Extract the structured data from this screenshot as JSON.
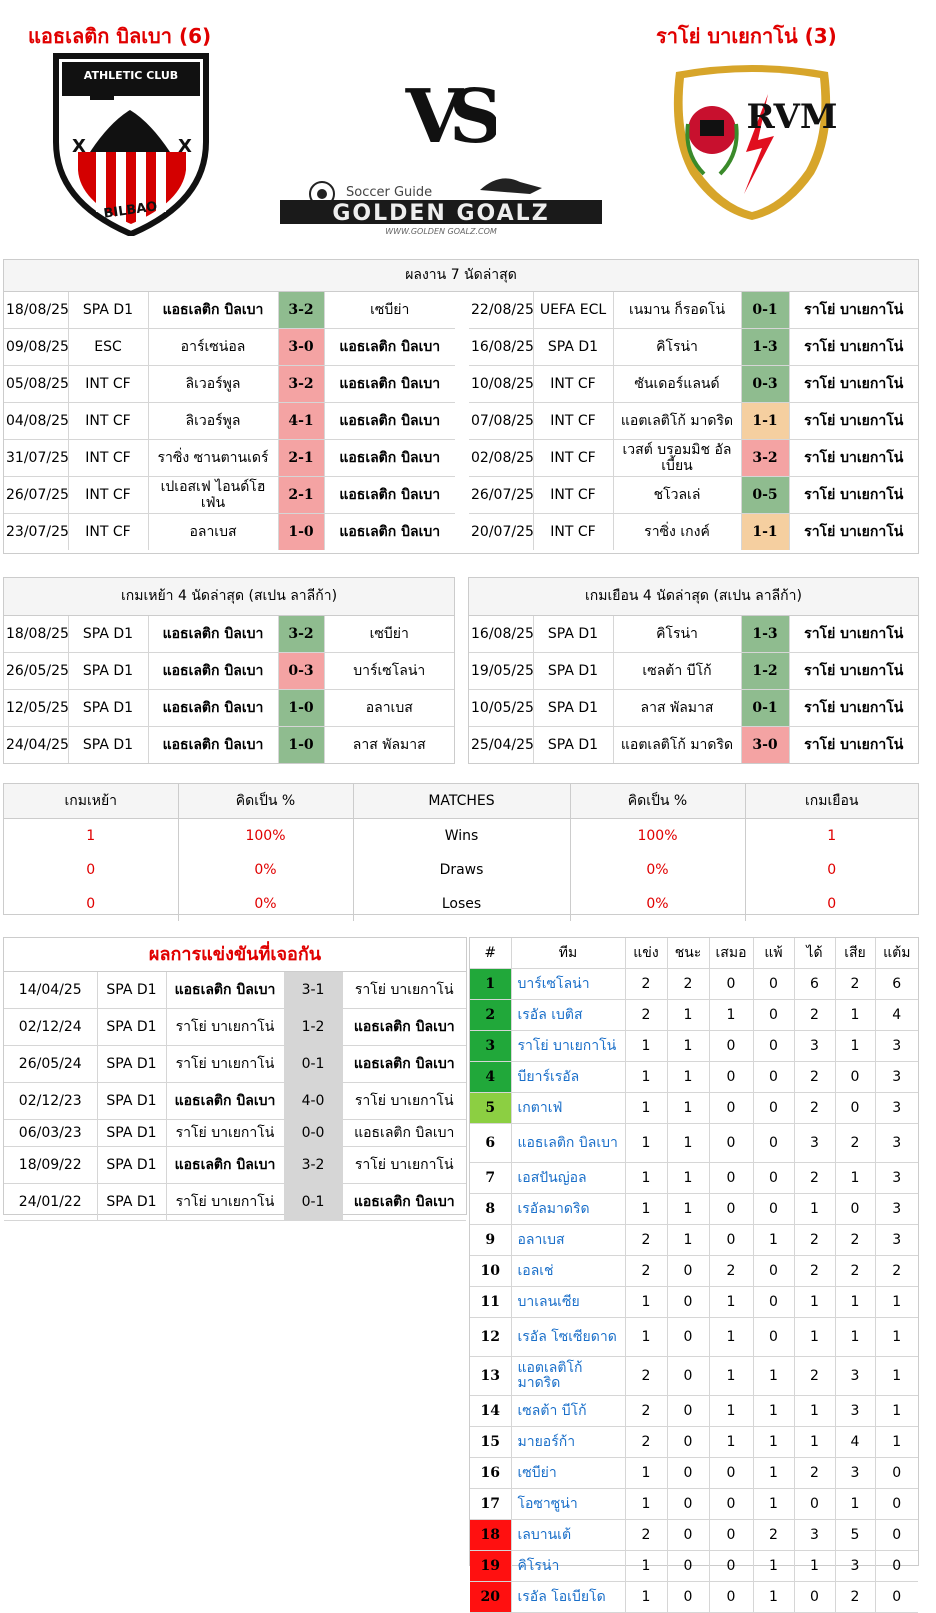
{
  "header": {
    "home_title": "แอธเลติก บิลเบา (6)",
    "away_title": "ราโย่ บาเยกาโน่ (3)",
    "vs": "VS",
    "home_crest_text": "ATHLETIC CLUB",
    "home_crest_bottom": "BILBAO",
    "away_crest_text": "RVM",
    "brand_top": "Soccer Guide",
    "brand_main": "GOLDEN GOALZ",
    "brand_url": "WWW.GOLDEN GOALZ.COM"
  },
  "last7": {
    "title": "ผลงาน 7 นัดล่าสุด",
    "home": [
      {
        "date": "18/08/25",
        "comp": "SPA D1",
        "home": "แอธเลติก บิลเบา",
        "score": "3-2",
        "away": "เซบีย่า",
        "res": "w",
        "bold": "home"
      },
      {
        "date": "09/08/25",
        "comp": "ESC",
        "home": "อาร์เซน่อล",
        "score": "3-0",
        "away": "แอธเลติก บิลเบา",
        "res": "l",
        "bold": "away"
      },
      {
        "date": "05/08/25",
        "comp": "INT CF",
        "home": "ลิเวอร์พูล",
        "score": "3-2",
        "away": "แอธเลติก บิลเบา",
        "res": "l",
        "bold": "away"
      },
      {
        "date": "04/08/25",
        "comp": "INT CF",
        "home": "ลิเวอร์พูล",
        "score": "4-1",
        "away": "แอธเลติก บิลเบา",
        "res": "l",
        "bold": "away"
      },
      {
        "date": "31/07/25",
        "comp": "INT CF",
        "home": "ราซิ่ง ซานตานเดร์",
        "score": "2-1",
        "away": "แอธเลติก บิลเบา",
        "res": "l",
        "bold": "away"
      },
      {
        "date": "26/07/25",
        "comp": "INT CF",
        "home": "เปเอสเฟ ไอนด์โฮเฟ่น",
        "score": "2-1",
        "away": "แอธเลติก บิลเบา",
        "res": "l",
        "bold": "away"
      },
      {
        "date": "23/07/25",
        "comp": "INT CF",
        "home": "อลาเบส",
        "score": "1-0",
        "away": "แอธเลติก บิลเบา",
        "res": "l",
        "bold": "away"
      }
    ],
    "away": [
      {
        "date": "22/08/25",
        "comp": "UEFA ECL",
        "home": "เนมาน ก็รอดโน่",
        "score": "0-1",
        "away": "ราโย่ บาเยกาโน่",
        "res": "w",
        "bold": "away"
      },
      {
        "date": "16/08/25",
        "comp": "SPA D1",
        "home": "คิโรน่า",
        "score": "1-3",
        "away": "ราโย่ บาเยกาโน่",
        "res": "w",
        "bold": "away"
      },
      {
        "date": "10/08/25",
        "comp": "INT CF",
        "home": "ซันเดอร์แลนด์",
        "score": "0-3",
        "away": "ราโย่ บาเยกาโน่",
        "res": "w",
        "bold": "away"
      },
      {
        "date": "07/08/25",
        "comp": "INT CF",
        "home": "แอตเลติโก้ มาดริด",
        "score": "1-1",
        "away": "ราโย่ บาเยกาโน่",
        "res": "d",
        "bold": "away"
      },
      {
        "date": "02/08/25",
        "comp": "INT CF",
        "home": "เวสต์ บรอมมิช อัลเบี้ยน",
        "score": "3-2",
        "away": "ราโย่ บาเยกาโน่",
        "res": "l",
        "bold": "away"
      },
      {
        "date": "26/07/25",
        "comp": "INT CF",
        "home": "ชโวลเล่",
        "score": "0-5",
        "away": "ราโย่ บาเยกาโน่",
        "res": "w",
        "bold": "away"
      },
      {
        "date": "20/07/25",
        "comp": "INT CF",
        "home": "ราซิ่ง เกงค์",
        "score": "1-1",
        "away": "ราโย่ บาเยกาโน่",
        "res": "d",
        "bold": "away"
      }
    ]
  },
  "last4": {
    "home_title": "เกมเหย้า 4 นัดล่าสุด (สเปน ลาลีก้า)",
    "away_title": "เกมเยือน 4 นัดล่าสุด (สเปน ลาลีก้า)",
    "home": [
      {
        "date": "18/08/25",
        "comp": "SPA D1",
        "home": "แอธเลติก บิลเบา",
        "score": "3-2",
        "away": "เซบีย่า",
        "res": "w",
        "bold": "home"
      },
      {
        "date": "26/05/25",
        "comp": "SPA D1",
        "home": "แอธเลติก บิลเบา",
        "score": "0-3",
        "away": "บาร์เซโลน่า",
        "res": "l",
        "bold": "home"
      },
      {
        "date": "12/05/25",
        "comp": "SPA D1",
        "home": "แอธเลติก บิลเบา",
        "score": "1-0",
        "away": "อลาเบส",
        "res": "w",
        "bold": "home"
      },
      {
        "date": "24/04/25",
        "comp": "SPA D1",
        "home": "แอธเลติก บิลเบา",
        "score": "1-0",
        "away": "ลาส พัลมาส",
        "res": "w",
        "bold": "home"
      }
    ],
    "away": [
      {
        "date": "16/08/25",
        "comp": "SPA D1",
        "home": "คิโรน่า",
        "score": "1-3",
        "away": "ราโย่ บาเยกาโน่",
        "res": "w",
        "bold": "away"
      },
      {
        "date": "19/05/25",
        "comp": "SPA D1",
        "home": "เซลต้า บีโก้",
        "score": "1-2",
        "away": "ราโย่ บาเยกาโน่",
        "res": "w",
        "bold": "away"
      },
      {
        "date": "10/05/25",
        "comp": "SPA D1",
        "home": "ลาส พัลมาส",
        "score": "0-1",
        "away": "ราโย่ บาเยกาโน่",
        "res": "w",
        "bold": "away"
      },
      {
        "date": "25/04/25",
        "comp": "SPA D1",
        "home": "แอตเลติโก้ มาดริด",
        "score": "3-0",
        "away": "ราโย่ บาเยกาโน่",
        "res": "l",
        "bold": "away"
      }
    ]
  },
  "summary": {
    "headers": [
      "เกมเหย้า",
      "คิดเป็น %",
      "MATCHES",
      "คิดเป็น %",
      "เกมเยือน"
    ],
    "rows": [
      [
        "1",
        "100%",
        "Wins",
        "100%",
        "1"
      ],
      [
        "0",
        "0%",
        "Draws",
        "0%",
        "0"
      ],
      [
        "0",
        "0%",
        "Loses",
        "0%",
        "0"
      ]
    ]
  },
  "h2h": {
    "title": "ผลการแข่งขันที่เจอกัน",
    "rows": [
      {
        "date": "14/04/25",
        "comp": "SPA D1",
        "home": "แอธเลติก บิลเบา",
        "score": "3-1",
        "away": "ราโย่ บาเยกาโน่",
        "bold": "home"
      },
      {
        "date": "02/12/24",
        "comp": "SPA D1",
        "home": "ราโย่ บาเยกาโน่",
        "score": "1-2",
        "away": "แอธเลติก บิลเบา",
        "bold": "away"
      },
      {
        "date": "26/05/24",
        "comp": "SPA D1",
        "home": "ราโย่ บาเยกาโน่",
        "score": "0-1",
        "away": "แอธเลติก บิลเบา",
        "bold": "away"
      },
      {
        "date": "02/12/23",
        "comp": "SPA D1",
        "home": "แอธเลติก บิลเบา",
        "score": "4-0",
        "away": "ราโย่ บาเยกาโน่",
        "bold": "home"
      },
      {
        "date": "06/03/23",
        "comp": "SPA D1",
        "home": "ราโย่ บาเยกาโน่",
        "score": "0-0",
        "away": "แอธเลติก บิลเบา",
        "bold": ""
      },
      {
        "date": "18/09/22",
        "comp": "SPA D1",
        "home": "แอธเลติก บิลเบา",
        "score": "3-2",
        "away": "ราโย่ บาเยกาโน่",
        "bold": "home"
      },
      {
        "date": "24/01/22",
        "comp": "SPA D1",
        "home": "ราโย่ บาเยกาโน่",
        "score": "0-1",
        "away": "แอธเลติก บิลเบา",
        "bold": "away"
      }
    ]
  },
  "standings": {
    "headers": [
      "#",
      "ทีม",
      "แข่ง",
      "ชนะ",
      "เสมอ",
      "แพ้",
      "ได้",
      "เสีย",
      "แต้ม"
    ],
    "rows": [
      {
        "pos": "1",
        "team": "บาร์เซโลน่า",
        "p": "2",
        "w": "2",
        "d": "0",
        "l": "0",
        "gf": "6",
        "ga": "2",
        "pts": "6",
        "zone": "pg"
      },
      {
        "pos": "2",
        "team": "เรอัล เบติส",
        "p": "2",
        "w": "1",
        "d": "1",
        "l": "0",
        "gf": "2",
        "ga": "1",
        "pts": "4",
        "zone": "pg"
      },
      {
        "pos": "3",
        "team": "ราโย่ บาเยกาโน่",
        "p": "1",
        "w": "1",
        "d": "0",
        "l": "0",
        "gf": "3",
        "ga": "1",
        "pts": "3",
        "zone": "pg"
      },
      {
        "pos": "4",
        "team": "บียาร์เรอัล",
        "p": "1",
        "w": "1",
        "d": "0",
        "l": "0",
        "gf": "2",
        "ga": "0",
        "pts": "3",
        "zone": "pg"
      },
      {
        "pos": "5",
        "team": "เกตาเฟ่",
        "p": "1",
        "w": "1",
        "d": "0",
        "l": "0",
        "gf": "2",
        "ga": "0",
        "pts": "3",
        "zone": "plg"
      },
      {
        "pos": "6",
        "team": "แอธเลติก บิลเบา",
        "p": "1",
        "w": "1",
        "d": "0",
        "l": "0",
        "gf": "3",
        "ga": "2",
        "pts": "3",
        "zone": ""
      },
      {
        "pos": "7",
        "team": "เอสปันญ่อล",
        "p": "1",
        "w": "1",
        "d": "0",
        "l": "0",
        "gf": "2",
        "ga": "1",
        "pts": "3",
        "zone": ""
      },
      {
        "pos": "8",
        "team": "เรอัลมาดริด",
        "p": "1",
        "w": "1",
        "d": "0",
        "l": "0",
        "gf": "1",
        "ga": "0",
        "pts": "3",
        "zone": ""
      },
      {
        "pos": "9",
        "team": "อลาเบส",
        "p": "2",
        "w": "1",
        "d": "0",
        "l": "1",
        "gf": "2",
        "ga": "2",
        "pts": "3",
        "zone": ""
      },
      {
        "pos": "10",
        "team": "เอลเช่",
        "p": "2",
        "w": "0",
        "d": "2",
        "l": "0",
        "gf": "2",
        "ga": "2",
        "pts": "2",
        "zone": ""
      },
      {
        "pos": "11",
        "team": "บาเลนเซีย",
        "p": "1",
        "w": "0",
        "d": "1",
        "l": "0",
        "gf": "1",
        "ga": "1",
        "pts": "1",
        "zone": ""
      },
      {
        "pos": "12",
        "team": "เรอัล โซเซียดาด",
        "p": "1",
        "w": "0",
        "d": "1",
        "l": "0",
        "gf": "1",
        "ga": "1",
        "pts": "1",
        "zone": ""
      },
      {
        "pos": "13",
        "team": "แอตเลติโก้ มาดริด",
        "p": "2",
        "w": "0",
        "d": "1",
        "l": "1",
        "gf": "2",
        "ga": "3",
        "pts": "1",
        "zone": ""
      },
      {
        "pos": "14",
        "team": "เซลต้า บีโก้",
        "p": "2",
        "w": "0",
        "d": "1",
        "l": "1",
        "gf": "1",
        "ga": "3",
        "pts": "1",
        "zone": ""
      },
      {
        "pos": "15",
        "team": "มายอร์ก้า",
        "p": "2",
        "w": "0",
        "d": "1",
        "l": "1",
        "gf": "1",
        "ga": "4",
        "pts": "1",
        "zone": ""
      },
      {
        "pos": "16",
        "team": "เซบีย่า",
        "p": "1",
        "w": "0",
        "d": "0",
        "l": "1",
        "gf": "2",
        "ga": "3",
        "pts": "0",
        "zone": ""
      },
      {
        "pos": "17",
        "team": "โอซาซูน่า",
        "p": "1",
        "w": "0",
        "d": "0",
        "l": "1",
        "gf": "0",
        "ga": "1",
        "pts": "0",
        "zone": ""
      },
      {
        "pos": "18",
        "team": "เลบานเต้",
        "p": "2",
        "w": "0",
        "d": "0",
        "l": "2",
        "gf": "3",
        "ga": "5",
        "pts": "0",
        "zone": "pr"
      },
      {
        "pos": "19",
        "team": "คิโรน่า",
        "p": "1",
        "w": "0",
        "d": "0",
        "l": "1",
        "gf": "1",
        "ga": "3",
        "pts": "0",
        "zone": "pr"
      },
      {
        "pos": "20",
        "team": "เรอัล โอเบียโด",
        "p": "1",
        "w": "0",
        "d": "0",
        "l": "1",
        "gf": "0",
        "ga": "2",
        "pts": "0",
        "zone": "pr"
      }
    ]
  },
  "colors": {
    "accent_red": "#e00000",
    "win": "#8fbc8f",
    "loss": "#f4a3a3",
    "draw": "#f5cfa0",
    "link": "#1a6fc9"
  }
}
